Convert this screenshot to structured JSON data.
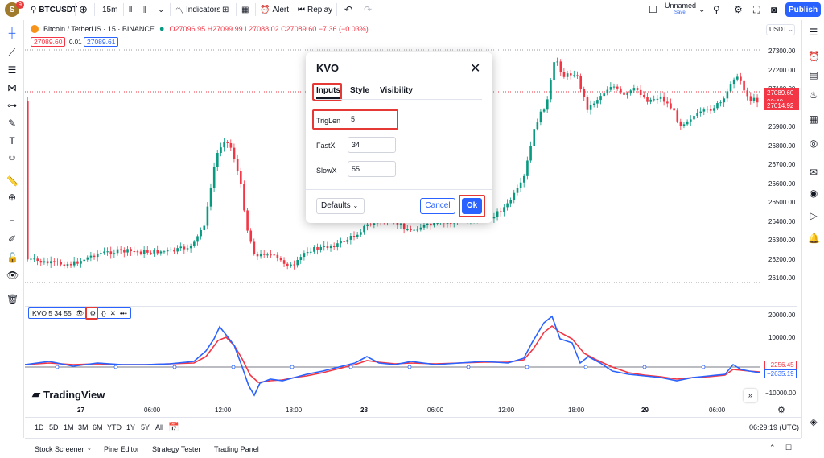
{
  "topbar": {
    "avatar_letter": "S",
    "notif_count": "9",
    "symbol": "BTCUSDT",
    "interval": "15m",
    "indicators_label": "Indicators",
    "alert_label": "Alert",
    "replay_label": "Replay",
    "layout_name": "Unnamed",
    "layout_status": "Save",
    "publish_label": "Publish"
  },
  "legend": {
    "title": "Bitcoin / TetherUS · 15 · BINANCE",
    "ohlc": "O27096.95 H27099.99 L27088.02 C27089.60 −7.36 (−0.03%)",
    "bid": "27089.60",
    "spread": "0.01",
    "ask": "27089.61"
  },
  "currency": "USDT",
  "price_axis": {
    "labels": [
      "27300.00",
      "27200.00",
      "27100.00",
      "27000.00",
      "26900.00",
      "26800.00",
      "26700.00",
      "26600.00",
      "26500.00",
      "26400.00",
      "26300.00",
      "26200.00",
      "26100.00"
    ],
    "current_price": "27089.60",
    "countdown": "00:40",
    "other_price": "27014.92"
  },
  "kvo_axis": {
    "labels": [
      "20000.00",
      "10000.00",
      "−10000.00"
    ],
    "signal_value": "−2256.45",
    "kvo_value": "−2635.19"
  },
  "kvo_legend": {
    "label": "KVO 5 34 55"
  },
  "time_axis": {
    "labels": [
      "27",
      "06:00",
      "12:00",
      "18:00",
      "28",
      "06:00",
      "12:00",
      "18:00",
      "29",
      "06:00"
    ],
    "clock": "06:29:19 (UTC)"
  },
  "timeframes": [
    "1D",
    "5D",
    "1M",
    "3M",
    "6M",
    "YTD",
    "1Y",
    "5Y",
    "All"
  ],
  "bottom_panel": {
    "tabs": [
      "Stock Screener",
      "Pine Editor",
      "Strategy Tester",
      "Trading Panel"
    ]
  },
  "dialog": {
    "title": "KVO",
    "tabs": [
      "Inputs",
      "Style",
      "Visibility"
    ],
    "inputs": [
      {
        "label": "TrigLen",
        "value": "5"
      },
      {
        "label": "FastX",
        "value": "34"
      },
      {
        "label": "SlowX",
        "value": "55"
      }
    ],
    "defaults_label": "Defaults",
    "cancel_label": "Cancel",
    "ok_label": "Ok"
  },
  "brand": "TradingView",
  "colors": {
    "up": "#089981",
    "down": "#f23645",
    "accent": "#2962ff",
    "kvo": "#2962ff",
    "signal": "#f23645"
  }
}
